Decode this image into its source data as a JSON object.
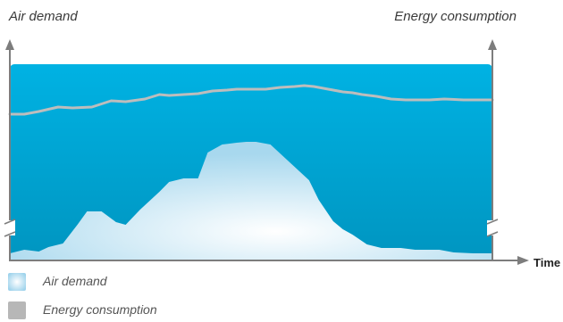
{
  "chart_data": {
    "type": "area",
    "y_left_label": "Air demand",
    "y_right_label": "Energy consumption",
    "xlabel": "Time",
    "legend": [
      {
        "name": "Air demand",
        "color": "#cfe9f6"
      },
      {
        "name": "Energy consumption",
        "color": "#b7b7b7"
      }
    ],
    "legend_placement": "bottom-left",
    "xlim": [
      0,
      100
    ],
    "ylim": [
      0,
      100
    ],
    "axis_break": true,
    "grid": false,
    "series": [
      {
        "name": "Air demand",
        "kind": "area",
        "x": [
          0,
          3,
          6,
          8,
          11,
          14,
          16,
          19,
          22,
          24,
          27,
          31,
          33,
          36,
          39,
          41,
          44,
          47,
          49,
          51,
          54,
          58,
          62,
          64,
          67,
          69,
          71,
          74,
          77,
          79,
          81,
          84,
          89,
          92,
          96,
          100
        ],
        "y": [
          6,
          10,
          8,
          13,
          17,
          38,
          53,
          53,
          41,
          38,
          55,
          75,
          86,
          90,
          90,
          119,
          128,
          130,
          131,
          131,
          128,
          108,
          88,
          66,
          42,
          33,
          27,
          16,
          12,
          12,
          12,
          10,
          10,
          7,
          6,
          6
        ]
      },
      {
        "name": "Energy consumption",
        "kind": "line",
        "x": [
          0,
          3,
          6,
          10,
          13,
          17,
          21,
          24,
          28,
          31,
          33,
          36,
          39,
          42,
          45,
          47,
          50,
          53,
          56,
          59,
          61,
          63,
          66,
          69,
          71,
          73,
          76,
          79,
          82,
          84,
          87,
          90,
          94,
          98,
          100
        ],
        "y": [
          162,
          162,
          165,
          170,
          169,
          170,
          177,
          176,
          179,
          184,
          183,
          184,
          185,
          188,
          189,
          190,
          190,
          190,
          192,
          193,
          194,
          193,
          190,
          187,
          186,
          184,
          182,
          179,
          178,
          178,
          178,
          179,
          178,
          178,
          178
        ]
      }
    ],
    "colors": {
      "plot_top": "#00b2e3",
      "plot_bottom": "#0095c0",
      "air_fill_center": "#ffffff",
      "air_fill_edge": "#a8d8ee",
      "line": "#bdbdbd",
      "axis": "#7d7d7d"
    }
  }
}
